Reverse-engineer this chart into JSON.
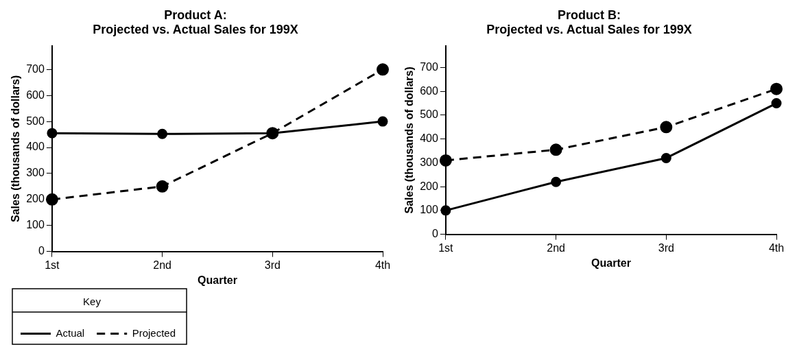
{
  "chart_data": [
    {
      "type": "line",
      "title": "Product A:",
      "subtitle": "Projected vs. Actual Sales for 199X",
      "xlabel": "Quarter",
      "ylabel": "Sales (thousands of dollars)",
      "categories": [
        "1st",
        "2nd",
        "3rd",
        "4th"
      ],
      "ylim": [
        0,
        790
      ],
      "yticks": [
        0,
        100,
        200,
        300,
        400,
        500,
        600,
        700
      ],
      "grid": false,
      "marker": "circle",
      "legend": "bottom left",
      "legend_title": "Key",
      "series": [
        {
          "name": "Actual",
          "color": "#000000",
          "line_style": "solid",
          "values": [
            455,
            452,
            455,
            500
          ]
        },
        {
          "name": "Projected",
          "color": "#000000",
          "line_style": "dashed",
          "values": [
            200,
            250,
            455,
            700
          ]
        }
      ]
    },
    {
      "type": "line",
      "title": "Product B:",
      "subtitle": "Projected vs. Actual Sales for 199X",
      "xlabel": "Quarter",
      "ylabel": "Sales (thousands of dollars)",
      "categories": [
        "1st",
        "2nd",
        "3rd",
        "4th"
      ],
      "ylim": [
        0,
        790
      ],
      "yticks": [
        0,
        100,
        200,
        300,
        400,
        500,
        600,
        700
      ],
      "grid": false,
      "marker": "circle",
      "legend": false,
      "series": [
        {
          "color": "#000000",
          "line_style": "solid",
          "values": [
            100,
            220,
            320,
            550
          ]
        },
        {
          "color": "#000000",
          "line_style": "dashed",
          "values": [
            310,
            355,
            450,
            610
          ]
        }
      ]
    }
  ]
}
